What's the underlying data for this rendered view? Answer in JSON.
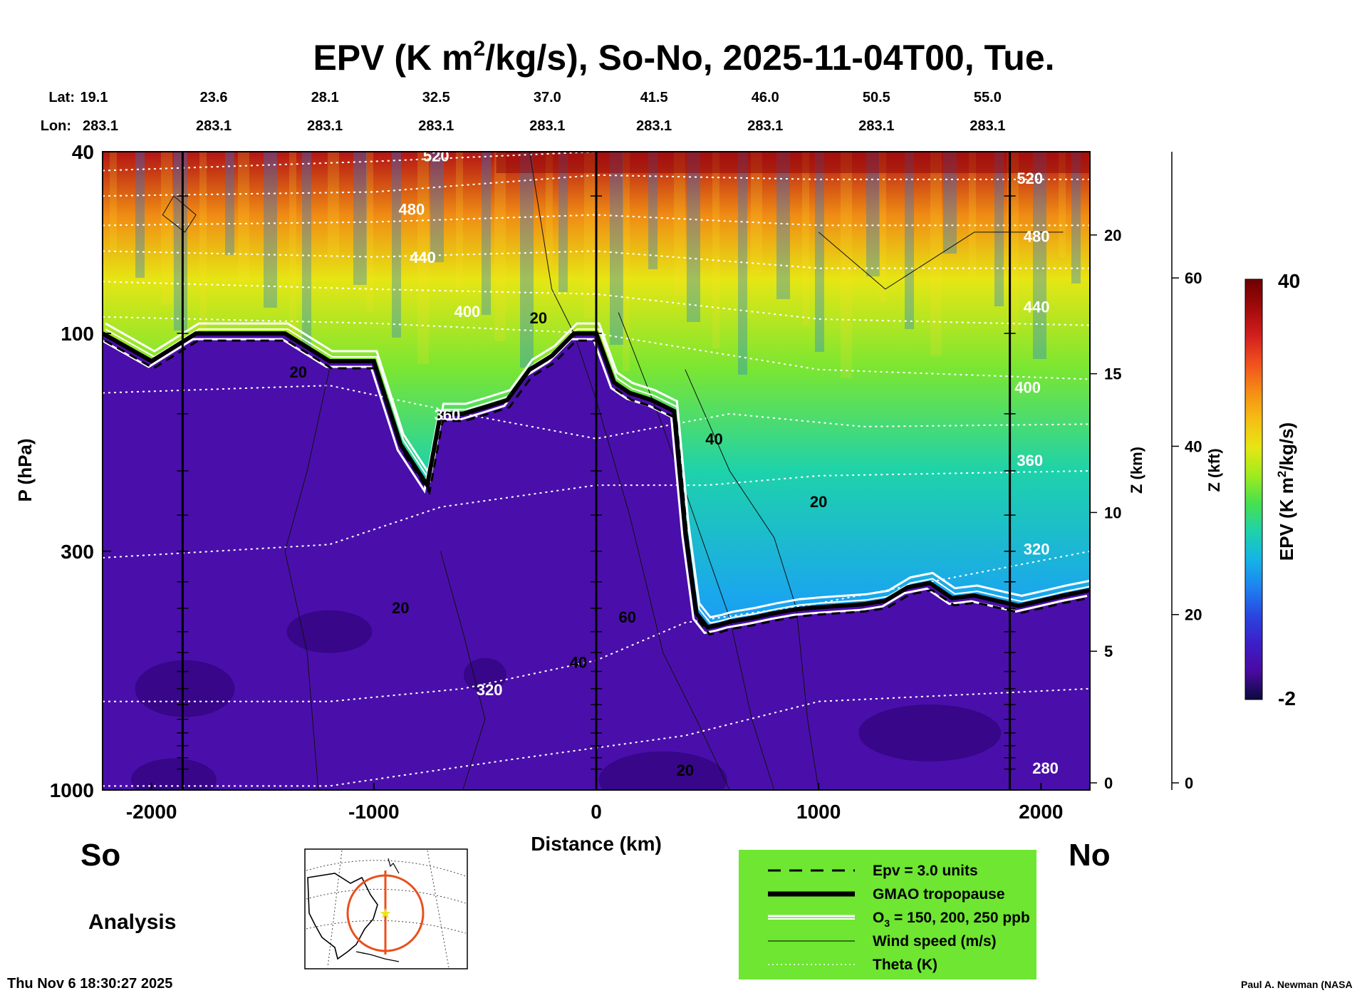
{
  "chart_data": {
    "type": "heatmap",
    "title_parts": [
      "EPV (K m",
      "2",
      "/kg/s), So-No, 2025-11-04T00, Tue."
    ],
    "title": "EPV (K m2/kg/s), So-No, 2025-11-04T00, Tue.",
    "xlabel": "Distance (km)",
    "ylabel": "P (hPa)",
    "xlim": [
      -2220,
      2220
    ],
    "x_ticks": [
      -2000,
      -1000,
      0,
      1000,
      2000
    ],
    "x_tick_labels": [
      "-2000",
      "-1000",
      "0",
      "1000",
      "2000"
    ],
    "y_ticks": [
      40,
      100,
      300,
      1000
    ],
    "y_tick_labels": [
      "40",
      "100",
      "300",
      "1000"
    ],
    "z_km_label": "Z (km)",
    "z_km_ticks": [
      0,
      5,
      10,
      15,
      20
    ],
    "z_km_tick_labels": [
      "0",
      "5",
      "10",
      "15",
      "20"
    ],
    "z_kft_label": "Z (kft)",
    "z_kft_ticks": [
      0,
      20,
      40,
      60
    ],
    "z_kft_tick_labels": [
      "0",
      "20",
      "40",
      "60"
    ],
    "lat_label": "Lat:",
    "lon_label": "Lon:",
    "lat_values": [
      "19.1",
      "23.6",
      "28.1",
      "32.5",
      "37.0",
      "41.5",
      "46.0",
      "50.5",
      "55.0"
    ],
    "lon_values": [
      "283.1",
      "283.1",
      "283.1",
      "283.1",
      "283.1",
      "283.1",
      "283.1",
      "283.1",
      "283.1"
    ],
    "lat_lon_x_km": [
      -2220,
      -1720,
      -1220,
      -720,
      -220,
      260,
      760,
      1260,
      1760
    ],
    "direction_left": "So",
    "direction_right": "No",
    "mode_label": "Analysis",
    "timestamp": "Thu Nov  6 18:30:27 2025",
    "credit": "Paul A. Newman (NASA",
    "colorbar": {
      "label": "EPV (K m2/kg/s)",
      "min": -2,
      "max": 40,
      "min_label": "-2",
      "max_label": "40",
      "colors": [
        "#0a0a3c",
        "#4a0aa0",
        "#3c1ec8",
        "#2a46e0",
        "#1e82f0",
        "#14b4e6",
        "#1ed2aa",
        "#46e050",
        "#a0eb1e",
        "#e6e614",
        "#f5be14",
        "#f58c14",
        "#f0501e",
        "#d21e1e",
        "#a00a0a",
        "#6e0000"
      ]
    },
    "tropopause_x_km": [
      -2220,
      -2000,
      -1800,
      -1600,
      -1400,
      -1200,
      -1000,
      -880,
      -760,
      -700,
      -600,
      -500,
      -400,
      -300,
      -200,
      -100,
      0,
      80,
      150,
      250,
      350,
      400,
      450,
      500,
      550,
      600,
      700,
      800,
      900,
      1000,
      1100,
      1200,
      1300,
      1400,
      1500,
      1600,
      1700,
      1800,
      1900,
      2000,
      2100,
      2220
    ],
    "tropopause_p_hpa": [
      100,
      115,
      100,
      100,
      100,
      115,
      115,
      175,
      215,
      150,
      150,
      145,
      140,
      120,
      112,
      100,
      100,
      128,
      135,
      140,
      148,
      270,
      410,
      440,
      435,
      428,
      420,
      410,
      402,
      398,
      395,
      392,
      385,
      360,
      352,
      380,
      375,
      385,
      395,
      385,
      375,
      365
    ],
    "theta_labels": [
      {
        "text": "520",
        "x_km": -720,
        "p_hpa": 42
      },
      {
        "text": "480",
        "x_km": -830,
        "p_hpa": 55
      },
      {
        "text": "440",
        "x_km": -780,
        "p_hpa": 70
      },
      {
        "text": "400",
        "x_km": -580,
        "p_hpa": 92
      },
      {
        "text": "360",
        "x_km": -670,
        "p_hpa": 155
      },
      {
        "text": "320",
        "x_km": -480,
        "p_hpa": 620
      },
      {
        "text": "520",
        "x_km": 1950,
        "p_hpa": 47
      },
      {
        "text": "480",
        "x_km": 1980,
        "p_hpa": 63
      },
      {
        "text": "440",
        "x_km": 1980,
        "p_hpa": 90
      },
      {
        "text": "400",
        "x_km": 1940,
        "p_hpa": 135
      },
      {
        "text": "360",
        "x_km": 1950,
        "p_hpa": 195
      },
      {
        "text": "320",
        "x_km": 1980,
        "p_hpa": 305
      },
      {
        "text": "280",
        "x_km": 2020,
        "p_hpa": 920
      }
    ],
    "wind_labels": [
      {
        "text": "20",
        "x_km": -260,
        "p_hpa": 95
      },
      {
        "text": "20",
        "x_km": -1340,
        "p_hpa": 125
      },
      {
        "text": "20",
        "x_km": -880,
        "p_hpa": 410
      },
      {
        "text": "40",
        "x_km": -80,
        "p_hpa": 540
      },
      {
        "text": "60",
        "x_km": 140,
        "p_hpa": 430
      },
      {
        "text": "40",
        "x_km": 530,
        "p_hpa": 175
      },
      {
        "text": "20",
        "x_km": 1000,
        "p_hpa": 240
      },
      {
        "text": "20",
        "x_km": 400,
        "p_hpa": 930
      }
    ],
    "legend": [
      {
        "style": "dashed",
        "label_parts": [
          "Epv = 3.0 units"
        ]
      },
      {
        "style": "thick",
        "label_parts": [
          "GMAO tropopause"
        ]
      },
      {
        "style": "double-white",
        "label_parts": [
          "O",
          "3",
          " = 150, 200, 250 ppb"
        ]
      },
      {
        "style": "thin",
        "label_parts": [
          "Wind speed (m/s)"
        ]
      },
      {
        "style": "dotted-white",
        "label_parts": [
          "Theta (K)"
        ]
      }
    ],
    "legend_background": "#6ee632",
    "inset_map_label": "cross-section location map"
  }
}
